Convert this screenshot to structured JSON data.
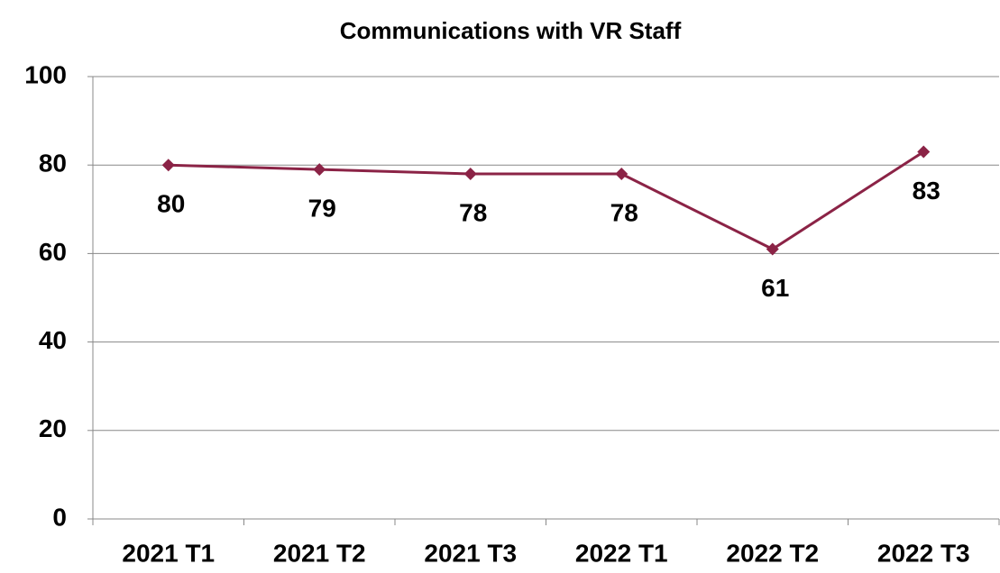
{
  "chart_data": {
    "type": "line",
    "title": "Communications with VR Staff",
    "categories": [
      "2021 T1",
      "2021 T2",
      "2021 T3",
      "2022 T1",
      "2022 T2",
      "2022 T3"
    ],
    "series": [
      {
        "name": "Communications with VR Staff",
        "color": "#8b2346",
        "values": [
          80,
          79,
          78,
          78,
          61,
          83
        ]
      }
    ],
    "ylim": [
      0,
      100
    ],
    "yticks": [
      0,
      20,
      40,
      60,
      80,
      100
    ],
    "grid": true
  }
}
